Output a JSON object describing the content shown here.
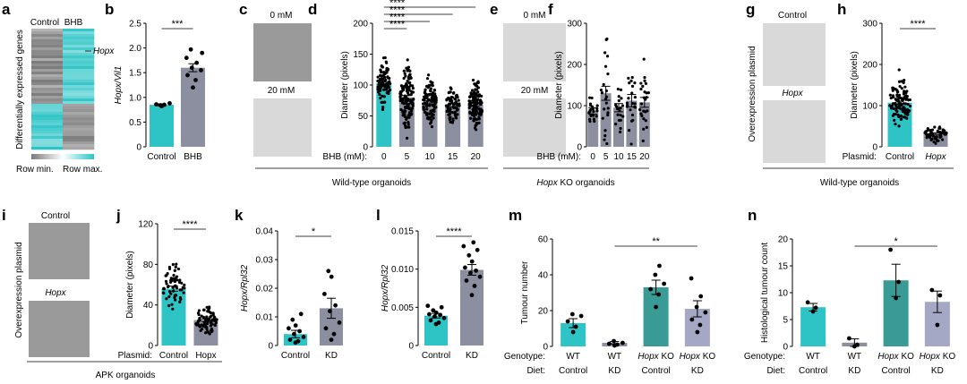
{
  "colors": {
    "teal": "#2ec4c6",
    "slate": "#8c8fa0",
    "darkteal": "#3a9a96",
    "lavender": "#a5a8c4"
  },
  "panels_text": {
    "a": {
      "letter": "a",
      "col_control": "Control",
      "col_bhb": "BHB",
      "gene": "Hopx",
      "ylabel": "Differentially expressed genes",
      "row_min": "Row min.",
      "row_max": "Row max."
    },
    "c": {
      "letter": "c",
      "top": "0 mM",
      "bottom": "20 mM"
    },
    "e": {
      "letter": "e",
      "top": "0 mM",
      "bottom": "20 mM"
    },
    "g": {
      "letter": "g",
      "top": "Control",
      "bottom": "Hopx",
      "side": "Overexpression plasmid"
    },
    "i": {
      "letter": "i",
      "top": "Control",
      "bottom": "Hopx",
      "side": "Overexpression plasmid"
    },
    "group1": "Wild-type organoids",
    "group2_ital": "Hopx",
    "group2_rest": " KO organoids",
    "group3": "Wild-type organoids",
    "group4": "APK organoids"
  },
  "chart_data": [
    {
      "id": "b",
      "type": "bar",
      "ylabel": "Hopx/Vil1",
      "categories": [
        "Control",
        "BHB"
      ],
      "values": [
        0.85,
        1.6
      ],
      "errors": [
        0.02,
        0.08
      ],
      "ylim": [
        0,
        2.5
      ],
      "ticks": [
        "0",
        "0.5",
        "1.0",
        "1.5",
        "2.0",
        "2.5"
      ],
      "points": [
        [
          0.82,
          0.85,
          0.86,
          0.88,
          0.84
        ],
        [
          1.2,
          1.35,
          1.45,
          1.55,
          1.6,
          1.7,
          1.8,
          1.9,
          1.97
        ]
      ],
      "sig": "***"
    },
    {
      "id": "d",
      "type": "bar",
      "ylabel": "Diameter (pixels)",
      "xlabel_prefix": "BHB (mM):",
      "categories": [
        "0",
        "5",
        "10",
        "15",
        "20"
      ],
      "values": [
        103,
        80,
        72,
        67,
        68
      ],
      "errors": [
        2.5,
        3,
        2.5,
        2.5,
        2.5
      ],
      "ylim": [
        0,
        200
      ],
      "ticks": [
        "0",
        "50",
        "100",
        "150",
        "200"
      ],
      "n_points": [
        90,
        130,
        110,
        80,
        120
      ],
      "sig": [
        "****",
        "****",
        "****",
        "****"
      ]
    },
    {
      "id": "f",
      "type": "bar",
      "ylabel": "Diameter (pixels)",
      "xlabel_prefix": "BHB (mM):",
      "categories": [
        "0",
        "5",
        "10",
        "15",
        "20"
      ],
      "values": [
        87,
        130,
        95,
        112,
        108
      ],
      "errors": [
        8,
        17,
        10,
        15,
        12
      ],
      "ylim": [
        0,
        300
      ],
      "ticks": [
        "0",
        "100",
        "200",
        "300"
      ],
      "n_points": [
        22,
        22,
        20,
        22,
        25
      ]
    },
    {
      "id": "h",
      "type": "bar",
      "ylabel": "Diameter (pixels)",
      "xlabel_prefix": "Plasmid:",
      "categories": [
        "Control",
        "Hopx"
      ],
      "values": [
        107,
        32
      ],
      "errors": [
        4,
        2
      ],
      "ylim": [
        0,
        300
      ],
      "ticks": [
        "0",
        "100",
        "200",
        "300"
      ],
      "n_points": [
        110,
        60
      ],
      "sig": "****"
    },
    {
      "id": "j",
      "type": "bar",
      "ylabel": "Diameter (pixels)",
      "xlabel_prefix": "Plasmid:",
      "categories": [
        "Control",
        "Hopx"
      ],
      "values": [
        56,
        25
      ],
      "errors": [
        2.5,
        1.2
      ],
      "ylim": [
        0,
        120
      ],
      "ticks": [
        "0",
        "40",
        "80",
        "120"
      ],
      "n_points": [
        60,
        70
      ],
      "sig": "****"
    },
    {
      "id": "k",
      "type": "bar",
      "ylabel": "Hopx/Rpl32",
      "categories": [
        "Control",
        "KD"
      ],
      "values": [
        0.004,
        0.013
      ],
      "errors": [
        0.0013,
        0.0035
      ],
      "ylim": [
        0,
        0.04
      ],
      "ticks": [
        "0",
        "0.01",
        "0.02",
        "0.03",
        "0.04"
      ],
      "points": [
        [
          0.001,
          0.0015,
          0.002,
          0.003,
          0.004,
          0.005,
          0.006,
          0.007,
          0.009,
          0.011
        ],
        [
          0.002,
          0.004,
          0.006,
          0.008,
          0.012,
          0.014,
          0.018,
          0.024,
          0.026
        ]
      ],
      "sig": "*"
    },
    {
      "id": "l",
      "type": "bar",
      "ylabel": "Hopx/Rpl32",
      "categories": [
        "Control",
        "KD"
      ],
      "values": [
        0.0039,
        0.0099
      ],
      "errors": [
        0.0003,
        0.0007
      ],
      "ylim": [
        0,
        0.015
      ],
      "ticks": [
        "0",
        "0.005",
        "0.010",
        "0.015"
      ],
      "points": [
        [
          0.0028,
          0.003,
          0.0033,
          0.0036,
          0.0038,
          0.004,
          0.0041,
          0.0043,
          0.0046,
          0.005,
          0.0052
        ],
        [
          0.0066,
          0.0078,
          0.0085,
          0.009,
          0.0095,
          0.0098,
          0.0102,
          0.011,
          0.0118,
          0.0125,
          0.013,
          0.0135
        ]
      ],
      "sig": "****"
    },
    {
      "id": "m",
      "type": "bar",
      "ylabel": "Tumour number",
      "genotype_label": "Genotype:",
      "diet_label": "Diet:",
      "categories": [
        "WT|Control",
        "WT|KD",
        "Hopx KO|Control",
        "Hopx KO|KD"
      ],
      "values": [
        13,
        2,
        33,
        21
      ],
      "errors": [
        2.5,
        0.7,
        4,
        4.5
      ],
      "ylim": [
        0,
        60
      ],
      "ticks": [
        "0",
        "20",
        "40",
        "60"
      ],
      "points": [
        [
          8,
          11,
          14,
          17,
          18
        ],
        [
          0.5,
          1,
          1.5,
          2,
          3
        ],
        [
          22,
          29,
          32,
          35,
          40,
          45
        ],
        [
          8,
          12,
          15,
          19,
          22,
          28,
          38
        ]
      ],
      "sig": "**"
    },
    {
      "id": "n",
      "type": "bar",
      "ylabel": "Histological tumour count",
      "genotype_label": "Genotype:",
      "diet_label": "Diet:",
      "categories": [
        "WT|Control",
        "WT|KD",
        "Hopx KO|Control",
        "Hopx KO|KD"
      ],
      "values": [
        7.3,
        0.7,
        12.3,
        8.3
      ],
      "errors": [
        0.7,
        0.7,
        3,
        2
      ],
      "ylim": [
        0,
        20
      ],
      "ticks": [
        "0",
        "5",
        "10",
        "15",
        "20"
      ],
      "points": [
        [
          6.5,
          7.2,
          8.2
        ],
        [
          0,
          0.3,
          1.5
        ],
        [
          9,
          12,
          18
        ],
        [
          4,
          9.5,
          10.5
        ]
      ],
      "sig": "*"
    }
  ]
}
